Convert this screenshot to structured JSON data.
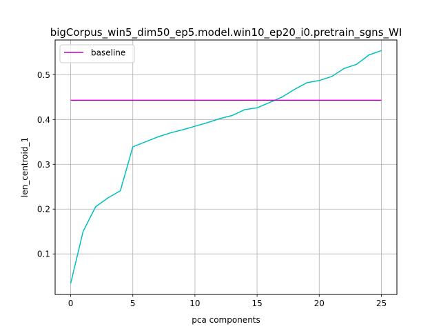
{
  "chart_data": {
    "type": "line",
    "title": "bigCorpus_win5_dim50_ep5.model.win10_ep20_i0.pretrain_sgns_WI",
    "xlabel": "pca components",
    "ylabel": "len_centroid_1",
    "xlim": [
      -1.25,
      26.25
    ],
    "ylim": [
      0.0095,
      0.5775
    ],
    "xticks": [
      0,
      5,
      10,
      15,
      20,
      25
    ],
    "xtick_labels": [
      "0",
      "5",
      "10",
      "15",
      "20",
      "25"
    ],
    "yticks": [
      0.1,
      0.2,
      0.3,
      0.4,
      0.5
    ],
    "ytick_labels": [
      "0.1",
      "0.2",
      "0.3",
      "0.4",
      "0.5"
    ],
    "grid": true,
    "legend_position": "upper-left",
    "series": [
      {
        "color": "#00bfbf",
        "x": [
          0,
          1,
          2,
          3,
          4,
          5,
          6,
          7,
          8,
          9,
          10,
          11,
          12,
          13,
          14,
          15,
          16,
          17,
          18,
          19,
          20,
          21,
          22,
          23,
          24,
          25
        ],
        "y": [
          0.034,
          0.15,
          0.205,
          0.225,
          0.241,
          0.339,
          0.35,
          0.361,
          0.37,
          0.377,
          0.385,
          0.393,
          0.402,
          0.409,
          0.422,
          0.426,
          0.438,
          0.45,
          0.467,
          0.482,
          0.487,
          0.496,
          0.514,
          0.523,
          0.544,
          0.554
        ]
      },
      {
        "name": "baseline",
        "color": "#bf00bf",
        "x": [
          0,
          25
        ],
        "y": [
          0.443,
          0.443
        ]
      }
    ]
  }
}
